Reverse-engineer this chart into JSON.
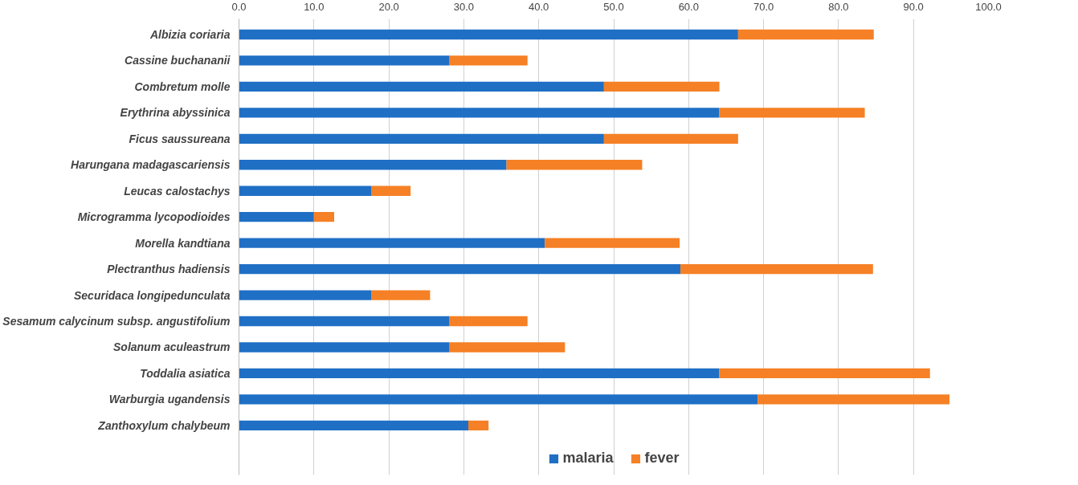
{
  "chart_data": {
    "type": "bar",
    "orientation": "horizontal",
    "stacked": true,
    "categories": [
      "Albizia coriaria",
      "Cassine buchananii",
      "Combretum molle",
      "Erythrina abyssinica",
      "Ficus saussureana",
      "Harungana madagascariensis",
      "Leucas calostachys",
      "Microgramma lycopodioides",
      "Morella kandtiana",
      "Plectranthus hadiensis",
      "Securidaca longipedunculata",
      "Sesamum calycinum subsp. angustifolium",
      "Solanum aculeastrum",
      "Toddalia asiatica",
      "Warburgia ugandensis",
      "Zanthoxylum chalybeum"
    ],
    "series": [
      {
        "name": "malaria",
        "color": "#1f6fc5",
        "values": [
          66.6,
          28.1,
          48.7,
          64.1,
          48.7,
          35.7,
          17.7,
          10.0,
          40.8,
          58.9,
          17.7,
          28.1,
          28.1,
          64.1,
          69.2,
          30.6
        ]
      },
      {
        "name": "fever",
        "color": "#f58025",
        "values": [
          18.1,
          10.4,
          15.4,
          19.4,
          17.9,
          18.1,
          5.2,
          2.7,
          18.0,
          25.7,
          7.8,
          10.4,
          15.4,
          28.1,
          25.6,
          2.7
        ]
      }
    ],
    "xlim": [
      0,
      100
    ],
    "xticks": [
      {
        "value": 0,
        "label": "0.0"
      },
      {
        "value": 10,
        "label": "10.0"
      },
      {
        "value": 20,
        "label": "20.0"
      },
      {
        "value": 30,
        "label": "30.0"
      },
      {
        "value": 40,
        "label": "40.0"
      },
      {
        "value": 50,
        "label": "50.0"
      },
      {
        "value": 60,
        "label": "60.0"
      },
      {
        "value": 70,
        "label": "70.0"
      },
      {
        "value": 80,
        "label": "80.0"
      },
      {
        "value": 90,
        "label": "90.0"
      },
      {
        "value": 100,
        "label": "100.0"
      }
    ],
    "grid": "x",
    "legend": "bottom"
  }
}
